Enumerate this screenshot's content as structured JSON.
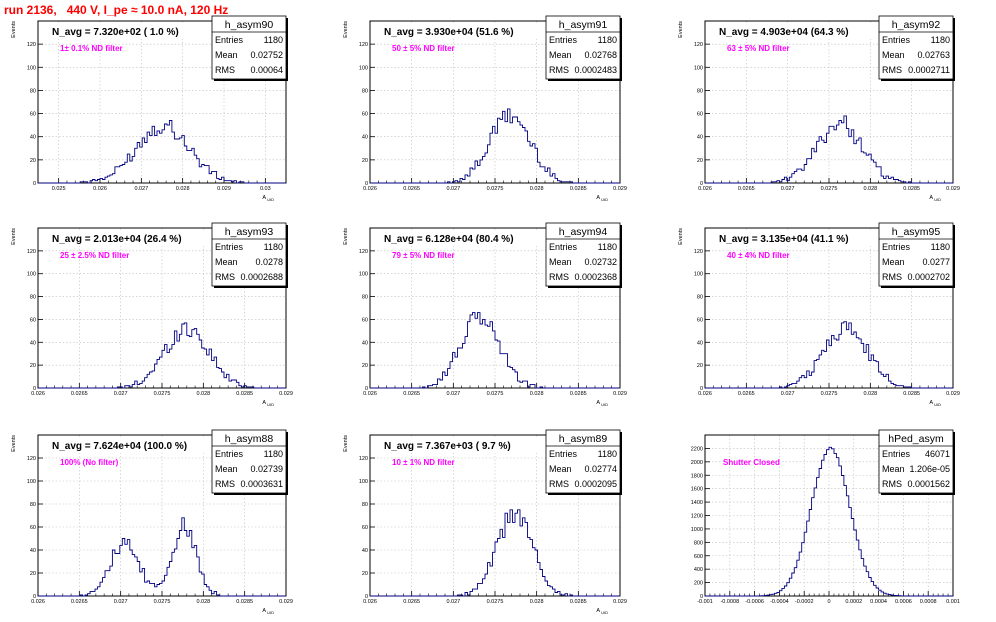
{
  "page": {
    "title": "run 2136,   440 V, I_pe ≈ 10.0 nA, 120 Hz",
    "colors": {
      "title": "#ff0000",
      "annotation": "#ff00ff",
      "histogram": "#000080",
      "grid": "#bfbfbf"
    }
  },
  "stats_labels": {
    "entries": "Entries",
    "mean": "Mean",
    "rms": "RMS"
  },
  "chart_data": [
    {
      "type": "histogram",
      "name": "h_asym90",
      "header": "N_avg = 7.320e+02 ( 1.0 %)",
      "annotation": "1± 0.1% ND filter",
      "stats": {
        "entries": "1180",
        "mean": "0.02752",
        "rms": "0.00064"
      },
      "xlabel": "A_UID",
      "ylabel": "Events",
      "xlim": [
        0.0245,
        0.0305
      ],
      "ylim": [
        0,
        140
      ],
      "xticks": [
        0.025,
        0.026,
        0.027,
        0.028,
        0.029,
        0.03
      ],
      "xtick_labels": [
        "0.025",
        "0.026",
        "0.027",
        "0.028",
        "0.029",
        "0.03"
      ],
      "yticks": [
        0,
        20,
        40,
        60,
        80,
        100,
        120
      ],
      "ytick_labels": [
        "0",
        "20",
        "40",
        "60",
        "80",
        "100",
        "120"
      ],
      "grid": true,
      "mean": 0.02752,
      "sigma": 0.00064,
      "peak": 50,
      "entries": 1180,
      "bin_width": 6e-05
    },
    {
      "type": "histogram",
      "name": "h_asym91",
      "header": "N_avg = 3.930e+04 (51.6 %)",
      "annotation": "50 ± 5% ND filter",
      "stats": {
        "entries": "1180",
        "mean": "0.02768",
        "rms": "0.0002483"
      },
      "xlabel": "A_UID",
      "ylabel": "Events",
      "xlim": [
        0.026,
        0.029
      ],
      "ylim": [
        0,
        140
      ],
      "xticks": [
        0.026,
        0.0265,
        0.027,
        0.0275,
        0.028,
        0.0285,
        0.029
      ],
      "xtick_labels": [
        "0.026",
        "0.0265",
        "0.027",
        "0.0275",
        "0.028",
        "0.0285",
        "0.029"
      ],
      "yticks": [
        0,
        20,
        40,
        60,
        80,
        100,
        120
      ],
      "ytick_labels": [
        "0",
        "20",
        "40",
        "60",
        "80",
        "100",
        "120"
      ],
      "grid": true,
      "mean": 0.02768,
      "sigma": 0.000248,
      "peak": 58,
      "entries": 1180,
      "bin_width": 3e-05
    },
    {
      "type": "histogram",
      "name": "h_asym92",
      "header": "N_avg = 4.903e+04 (64.3 %)",
      "annotation": "63 ± 5% ND filter",
      "stats": {
        "entries": "1180",
        "mean": "0.02763",
        "rms": "0.0002711"
      },
      "xlabel": "A_UID",
      "ylabel": "Events",
      "xlim": [
        0.026,
        0.029
      ],
      "ylim": [
        0,
        140
      ],
      "xticks": [
        0.026,
        0.0265,
        0.027,
        0.0275,
        0.028,
        0.0285,
        0.029
      ],
      "xtick_labels": [
        "0.026",
        "0.0265",
        "0.027",
        "0.0275",
        "0.028",
        "0.0285",
        "0.029"
      ],
      "yticks": [
        0,
        20,
        40,
        60,
        80,
        100,
        120
      ],
      "ytick_labels": [
        "0",
        "20",
        "40",
        "60",
        "80",
        "100",
        "120"
      ],
      "grid": true,
      "mean": 0.02763,
      "sigma": 0.000271,
      "peak": 52,
      "entries": 1180,
      "bin_width": 3e-05
    },
    {
      "type": "histogram",
      "name": "h_asym93",
      "header": "N_avg = 2.013e+04 (26.4 %)",
      "annotation": "25 ± 2.5% ND filter",
      "stats": {
        "entries": "1180",
        "mean": "0.0278",
        "rms": "0.0002688"
      },
      "xlabel": "A_UID",
      "ylabel": "Events",
      "xlim": [
        0.026,
        0.029
      ],
      "ylim": [
        0,
        140
      ],
      "xticks": [
        0.026,
        0.0265,
        0.027,
        0.0275,
        0.028,
        0.0285,
        0.029
      ],
      "xtick_labels": [
        "0.026",
        "0.0265",
        "0.027",
        "0.0275",
        "0.028",
        "0.0285",
        "0.029"
      ],
      "yticks": [
        0,
        20,
        40,
        60,
        80,
        100,
        120
      ],
      "ytick_labels": [
        "0",
        "20",
        "40",
        "60",
        "80",
        "100",
        "120"
      ],
      "grid": true,
      "mean": 0.0278,
      "sigma": 0.000269,
      "peak": 52,
      "entries": 1180,
      "bin_width": 3e-05
    },
    {
      "type": "histogram",
      "name": "h_asym94",
      "header": "N_avg = 6.128e+04 (80.4 %)",
      "annotation": "79 ± 5% ND filter",
      "stats": {
        "entries": "1180",
        "mean": "0.02732",
        "rms": "0.0002368"
      },
      "xlabel": "A_UID",
      "ylabel": "Events",
      "xlim": [
        0.026,
        0.029
      ],
      "ylim": [
        0,
        140
      ],
      "xticks": [
        0.026,
        0.0265,
        0.027,
        0.0275,
        0.028,
        0.0285,
        0.029
      ],
      "xtick_labels": [
        "0.026",
        "0.0265",
        "0.027",
        "0.0275",
        "0.028",
        "0.0285",
        "0.029"
      ],
      "yticks": [
        0,
        20,
        40,
        60,
        80,
        100,
        120
      ],
      "ytick_labels": [
        "0",
        "20",
        "40",
        "60",
        "80",
        "100",
        "120"
      ],
      "grid": true,
      "mean": 0.02732,
      "sigma": 0.000237,
      "peak": 62,
      "entries": 1180,
      "bin_width": 3e-05
    },
    {
      "type": "histogram",
      "name": "h_asym95",
      "header": "N_avg = 3.135e+04 (41.1 %)",
      "annotation": "40 ± 4% ND filter",
      "stats": {
        "entries": "1180",
        "mean": "0.0277",
        "rms": "0.0002702"
      },
      "xlabel": "A_UID",
      "ylabel": "Events",
      "xlim": [
        0.026,
        0.029
      ],
      "ylim": [
        0,
        140
      ],
      "xticks": [
        0.026,
        0.0265,
        0.027,
        0.0275,
        0.028,
        0.0285,
        0.029
      ],
      "xtick_labels": [
        "0.026",
        "0.0265",
        "0.027",
        "0.0275",
        "0.028",
        "0.0285",
        "0.029"
      ],
      "yticks": [
        0,
        20,
        40,
        60,
        80,
        100,
        120
      ],
      "ytick_labels": [
        "0",
        "20",
        "40",
        "60",
        "80",
        "100",
        "120"
      ],
      "grid": true,
      "mean": 0.0277,
      "sigma": 0.00027,
      "peak": 52,
      "entries": 1180,
      "bin_width": 3e-05
    },
    {
      "type": "histogram",
      "name": "h_asym88",
      "header": "N_avg = 7.624e+04 (100.0 %)",
      "annotation": "100% (No filter)",
      "stats": {
        "entries": "1180",
        "mean": "0.02739",
        "rms": "0.0003631"
      },
      "xlabel": "A_UID",
      "ylabel": "Events",
      "xlim": [
        0.026,
        0.029
      ],
      "ylim": [
        0,
        140
      ],
      "xticks": [
        0.026,
        0.0265,
        0.027,
        0.0275,
        0.028,
        0.0285,
        0.029
      ],
      "xtick_labels": [
        "0.026",
        "0.0265",
        "0.027",
        "0.0275",
        "0.028",
        "0.0285",
        "0.029"
      ],
      "yticks": [
        0,
        20,
        40,
        60,
        80,
        100,
        120
      ],
      "ytick_labels": [
        "0",
        "20",
        "40",
        "60",
        "80",
        "100",
        "120"
      ],
      "grid": true,
      "entries": 1180,
      "bin_width": 3e-05,
      "components": [
        {
          "mean": 0.02704,
          "sigma": 0.00018,
          "peak": 44
        },
        {
          "mean": 0.02777,
          "sigma": 0.00015,
          "peak": 60
        }
      ]
    },
    {
      "type": "histogram",
      "name": "h_asym89",
      "header": "N_avg = 7.367e+03 ( 9.7 %)",
      "annotation": "10 ± 1% ND filter",
      "stats": {
        "entries": "1180",
        "mean": "0.02774",
        "rms": "0.0002095"
      },
      "xlabel": "A_UID",
      "ylabel": "Events",
      "xlim": [
        0.026,
        0.029
      ],
      "ylim": [
        0,
        140
      ],
      "xticks": [
        0.026,
        0.0265,
        0.027,
        0.0275,
        0.028,
        0.0285,
        0.029
      ],
      "xtick_labels": [
        "0.026",
        "0.0265",
        "0.027",
        "0.0275",
        "0.028",
        "0.0285",
        "0.029"
      ],
      "yticks": [
        0,
        20,
        40,
        60,
        80,
        100,
        120
      ],
      "ytick_labels": [
        "0",
        "20",
        "40",
        "60",
        "80",
        "100",
        "120"
      ],
      "grid": true,
      "mean": 0.02774,
      "sigma": 0.00021,
      "peak": 72,
      "entries": 1180,
      "bin_width": 3e-05
    },
    {
      "type": "histogram",
      "name": "hPed_asym",
      "header": "",
      "annotation": "Shutter Closed",
      "stats": {
        "entries": "46071",
        "mean": "1.206e-05",
        "rms": "0.0001562"
      },
      "xlabel": "",
      "ylabel": "",
      "xlim": [
        -0.001,
        0.001
      ],
      "ylim": [
        0,
        2400
      ],
      "xticks": [
        -0.001,
        -0.0008,
        -0.0006,
        -0.0004,
        -0.0002,
        0,
        0.0002,
        0.0004,
        0.0006,
        0.0008,
        0.001
      ],
      "xtick_labels": [
        "-0.001",
        "-0.0008",
        "-0.0006",
        "-0.0004",
        "-0.0002",
        "0",
        "0.0002",
        "0.0004",
        "0.0006",
        "0.0008",
        "0.001"
      ],
      "yticks": [
        0,
        200,
        400,
        600,
        800,
        1000,
        1200,
        1400,
        1600,
        1800,
        2000,
        2200
      ],
      "ytick_labels": [
        "0",
        "200",
        "400",
        "600",
        "800",
        "1000",
        "1200",
        "1400",
        "1600",
        "1800",
        "2000",
        "2200"
      ],
      "grid": true,
      "mean": 1.206e-05,
      "sigma": 0.000156,
      "peak": 2200,
      "entries": 46071,
      "bin_width": 2e-05
    }
  ]
}
